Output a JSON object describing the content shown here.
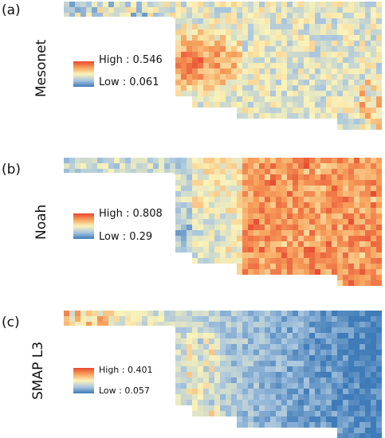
{
  "panels": [
    {
      "label": "(a)",
      "title": "Mesonet",
      "high": "High : 0.546",
      "low": "Low : 0.061",
      "pattern": "west-high"
    },
    {
      "label": "(b)",
      "title": "Noah",
      "high": "High : 0.808",
      "low": "Low : 0.29",
      "pattern": "east-high"
    },
    {
      "label": "(c)",
      "title": "SMAP L3",
      "high": "High : 0.401",
      "low": "Low : 0.057",
      "pattern": "east-low"
    }
  ],
  "colors": {
    "high": "#e8472f",
    "mid": "#fbf3b8",
    "low": "#3e7bb8"
  }
}
